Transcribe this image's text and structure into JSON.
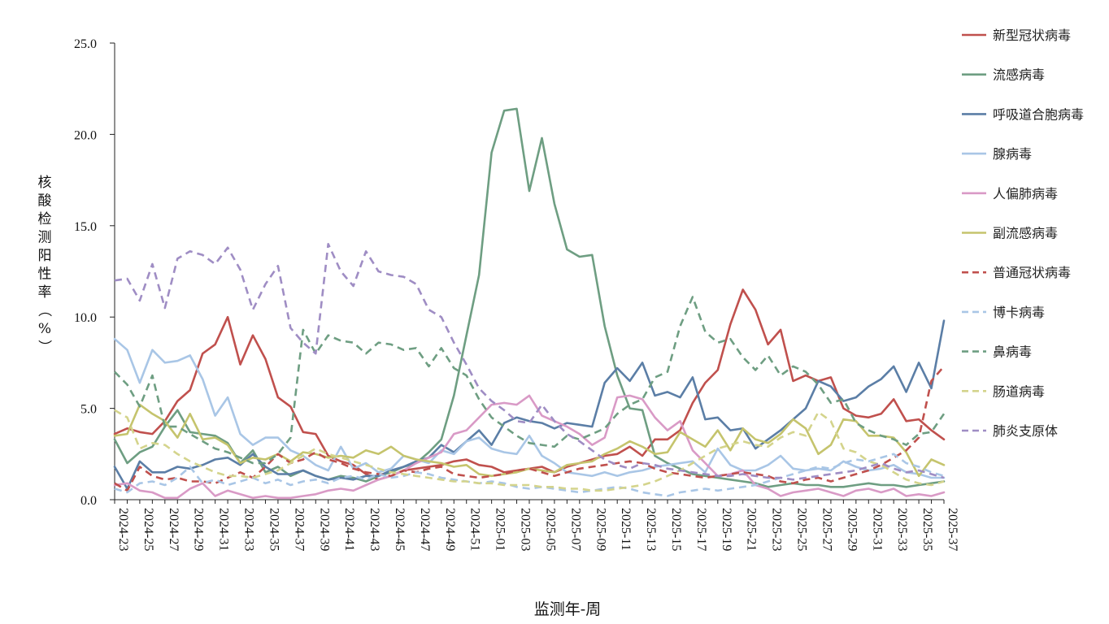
{
  "chart_data": {
    "type": "line",
    "title": "",
    "xlabel": "监测年-周",
    "ylabel": "核酸检测阳性率（%）",
    "ylim": [
      0,
      25
    ],
    "yticks": [
      "0.0",
      "5.0",
      "10.0",
      "15.0",
      "20.0",
      "25.0"
    ],
    "grid": false,
    "legend_position": "right",
    "x": [
      "2024-23",
      "2024-24",
      "2024-25",
      "2024-26",
      "2024-27",
      "2024-28",
      "2024-29",
      "2024-30",
      "2024-31",
      "2024-32",
      "2024-33",
      "2024-34",
      "2024-35",
      "2024-36",
      "2024-37",
      "2024-38",
      "2024-39",
      "2024-40",
      "2024-41",
      "2024-42",
      "2024-43",
      "2024-44",
      "2024-45",
      "2024-46",
      "2024-47",
      "2024-48",
      "2024-49",
      "2024-50",
      "2024-51",
      "2024-52",
      "2025-01",
      "2025-02",
      "2025-03",
      "2025-04",
      "2025-05",
      "2025-06",
      "2025-07",
      "2025-08",
      "2025-09",
      "2025-10",
      "2025-11",
      "2025-12",
      "2025-13",
      "2025-14",
      "2025-15",
      "2025-16",
      "2025-17",
      "2025-18",
      "2025-19",
      "2025-20",
      "2025-21",
      "2025-22",
      "2025-23",
      "2025-24",
      "2025-25",
      "2025-26",
      "2025-27",
      "2025-28",
      "2025-29",
      "2025-30",
      "2025-31",
      "2025-32",
      "2025-33",
      "2025-34",
      "2025-35",
      "2025-36",
      "2025-37"
    ],
    "x_tick_labels": [
      "2024-23",
      "2024-25",
      "2024-27",
      "2024-29",
      "2024-31",
      "2024-33",
      "2024-35",
      "2024-37",
      "2024-39",
      "2024-41",
      "2024-43",
      "2024-45",
      "2024-47",
      "2024-49",
      "2024-51",
      "2025-01",
      "2025-03",
      "2025-05",
      "2025-07",
      "2025-09",
      "2025-11",
      "2025-13",
      "2025-15",
      "2025-17",
      "2025-19",
      "2025-21",
      "2025-23",
      "2025-25",
      "2025-27",
      "2025-29",
      "2025-31",
      "2025-33",
      "2025-35",
      "2025-37"
    ],
    "series": [
      {
        "name": "新型冠状病毒",
        "color": "#c0504d",
        "dash": false,
        "values": [
          3.6,
          3.9,
          3.7,
          3.6,
          4.3,
          5.4,
          6.0,
          8.0,
          8.5,
          10.0,
          7.4,
          9.0,
          7.7,
          5.6,
          5.1,
          3.7,
          3.6,
          2.4,
          2.1,
          1.9,
          1.4,
          1.1,
          1.3,
          1.6,
          1.7,
          1.8,
          1.9,
          2.1,
          2.2,
          1.9,
          1.8,
          1.5,
          1.6,
          1.7,
          1.8,
          1.5,
          1.8,
          2.0,
          2.2,
          2.4,
          2.5,
          2.9,
          2.4,
          3.3,
          3.3,
          3.8,
          5.3,
          6.4,
          7.1,
          9.6,
          11.5,
          10.4,
          8.5,
          9.3,
          6.5,
          6.8,
          6.5,
          6.7,
          5.0,
          4.6,
          4.5,
          4.7,
          5.5,
          4.3,
          4.4,
          3.8,
          3.3
        ]
      },
      {
        "name": "流感病毒",
        "color": "#6e9e82",
        "dash": false,
        "values": [
          3.3,
          2.0,
          2.6,
          2.9,
          4.0,
          4.9,
          3.7,
          3.6,
          3.5,
          3.1,
          2.0,
          2.7,
          1.5,
          1.8,
          1.3,
          1.6,
          1.3,
          1.1,
          1.3,
          1.2,
          1.0,
          1.3,
          1.5,
          1.8,
          2.0,
          2.6,
          3.3,
          5.7,
          9.0,
          12.3,
          19.0,
          21.3,
          21.4,
          16.9,
          19.8,
          16.2,
          13.7,
          13.3,
          13.4,
          9.5,
          6.8,
          5.0,
          4.9,
          2.4,
          2.0,
          1.7,
          1.4,
          1.3,
          1.2,
          1.1,
          1.0,
          0.9,
          0.7,
          0.8,
          0.9,
          0.8,
          0.8,
          0.7,
          0.7,
          0.8,
          0.9,
          0.8,
          0.8,
          0.7,
          0.8,
          0.9,
          1.0
        ]
      },
      {
        "name": "呼吸道合胞病毒",
        "color": "#5b7ea6",
        "dash": false,
        "values": [
          1.8,
          0.6,
          2.1,
          1.5,
          1.5,
          1.8,
          1.7,
          1.9,
          2.2,
          2.3,
          1.9,
          2.5,
          1.8,
          1.4,
          1.4,
          1.6,
          1.3,
          1.1,
          1.2,
          1.1,
          1.3,
          1.3,
          1.6,
          1.8,
          2.1,
          2.3,
          3.0,
          2.6,
          3.2,
          3.8,
          3.0,
          4.2,
          4.5,
          4.3,
          4.2,
          3.9,
          4.2,
          4.1,
          4.0,
          6.4,
          7.2,
          6.5,
          7.5,
          5.7,
          5.9,
          5.6,
          6.7,
          4.4,
          4.5,
          3.8,
          3.9,
          2.8,
          3.3,
          3.8,
          4.4,
          5.0,
          6.5,
          6.2,
          5.4,
          5.6,
          6.2,
          6.6,
          7.3,
          5.9,
          7.5,
          6.1,
          9.8
        ]
      },
      {
        "name": "腺病毒",
        "color": "#a9c6e6",
        "dash": false,
        "values": [
          8.8,
          8.2,
          6.4,
          8.2,
          7.5,
          7.6,
          7.9,
          6.6,
          4.6,
          5.6,
          3.6,
          3.0,
          3.4,
          3.4,
          2.7,
          2.4,
          1.9,
          1.6,
          2.9,
          1.7,
          2.0,
          1.5,
          1.7,
          2.4,
          2.2,
          2.0,
          2.7,
          2.5,
          3.2,
          3.4,
          2.8,
          2.6,
          2.5,
          3.5,
          2.4,
          2.0,
          1.5,
          1.4,
          1.3,
          1.5,
          1.3,
          1.5,
          1.6,
          1.8,
          1.9,
          2.0,
          2.1,
          1.5,
          2.8,
          1.9,
          1.6,
          1.6,
          1.9,
          2.4,
          1.7,
          1.6,
          1.7,
          1.6,
          2.1,
          1.8,
          1.6,
          1.7,
          1.9,
          1.5,
          1.4,
          1.2,
          1.2
        ]
      },
      {
        "name": "人偏肺病毒",
        "color": "#d99ac6",
        "dash": false,
        "values": [
          0.8,
          0.9,
          0.5,
          0.4,
          0.1,
          0.1,
          0.6,
          0.9,
          0.2,
          0.5,
          0.3,
          0.1,
          0.2,
          0.1,
          0.1,
          0.2,
          0.3,
          0.5,
          0.6,
          0.5,
          0.8,
          1.1,
          1.3,
          1.6,
          2.0,
          2.3,
          2.6,
          3.6,
          3.8,
          4.5,
          5.2,
          5.3,
          5.2,
          5.7,
          4.6,
          4.3,
          4.0,
          3.6,
          3.0,
          3.4,
          5.6,
          5.7,
          5.5,
          4.5,
          3.8,
          4.3,
          2.7,
          2.0,
          1.3,
          1.4,
          1.6,
          0.8,
          0.6,
          0.2,
          0.4,
          0.5,
          0.6,
          0.4,
          0.2,
          0.5,
          0.6,
          0.4,
          0.6,
          0.2,
          0.3,
          0.2,
          0.4
        ]
      },
      {
        "name": "副流感病毒",
        "color": "#c5c46d",
        "dash": false,
        "values": [
          3.5,
          3.6,
          5.2,
          4.7,
          4.3,
          3.4,
          4.7,
          3.3,
          3.4,
          3.0,
          2.0,
          2.3,
          2.2,
          2.5,
          2.1,
          2.6,
          2.5,
          2.3,
          2.4,
          2.3,
          2.7,
          2.5,
          2.9,
          2.4,
          2.2,
          2.1,
          2.0,
          1.8,
          1.9,
          1.4,
          1.3,
          1.4,
          1.5,
          1.7,
          1.6,
          1.5,
          1.9,
          2.0,
          2.1,
          2.5,
          2.8,
          3.2,
          2.9,
          2.5,
          2.6,
          3.7,
          3.3,
          2.9,
          3.8,
          2.7,
          3.9,
          3.3,
          3.1,
          3.6,
          4.4,
          3.9,
          2.5,
          3.0,
          4.4,
          4.3,
          3.5,
          3.5,
          3.4,
          2.6,
          1.3,
          2.2,
          1.9
        ]
      },
      {
        "name": "普通冠状病毒",
        "color": "#c0504d",
        "dash": true,
        "values": [
          0.9,
          0.5,
          1.8,
          1.3,
          1.1,
          1.2,
          1.0,
          1.0,
          0.9,
          1.2,
          1.5,
          1.2,
          1.8,
          2.5,
          2.0,
          2.2,
          2.6,
          2.2,
          2.0,
          1.7,
          1.5,
          1.4,
          1.3,
          1.6,
          1.5,
          1.7,
          1.8,
          1.4,
          1.3,
          1.2,
          1.3,
          1.4,
          1.6,
          1.7,
          1.5,
          1.3,
          1.5,
          1.7,
          1.8,
          1.9,
          2.0,
          2.1,
          2.0,
          1.7,
          1.5,
          1.4,
          1.3,
          1.2,
          1.3,
          1.4,
          1.5,
          1.4,
          1.3,
          1.0,
          0.9,
          1.1,
          1.2,
          1.0,
          1.2,
          1.4,
          1.6,
          1.9,
          2.3,
          2.7,
          3.4,
          6.5,
          7.3
        ]
      },
      {
        "name": "博卡病毒",
        "color": "#a9c6e6",
        "dash": true,
        "values": [
          0.6,
          0.4,
          0.9,
          1.0,
          0.8,
          1.2,
          1.8,
          0.9,
          1.1,
          0.8,
          1.0,
          1.2,
          0.9,
          1.1,
          0.8,
          1.0,
          1.1,
          0.9,
          1.2,
          1.3,
          1.1,
          1.4,
          1.2,
          1.3,
          1.5,
          1.4,
          1.2,
          1.1,
          1.0,
          0.9,
          1.0,
          0.9,
          0.7,
          0.6,
          0.7,
          0.6,
          0.5,
          0.4,
          0.5,
          0.6,
          0.7,
          0.6,
          0.4,
          0.3,
          0.2,
          0.4,
          0.5,
          0.6,
          0.5,
          0.6,
          0.7,
          0.8,
          1.0,
          1.2,
          1.4,
          1.6,
          1.8,
          1.7,
          2.0,
          2.2,
          2.1,
          2.3,
          2.5,
          2.0,
          1.8,
          1.5,
          1.3
        ]
      },
      {
        "name": "鼻病毒",
        "color": "#6e9e82",
        "dash": true,
        "values": [
          7.0,
          6.3,
          5.1,
          6.8,
          4.0,
          4.0,
          3.6,
          3.2,
          2.8,
          2.6,
          2.3,
          2.0,
          2.0,
          2.5,
          3.4,
          9.3,
          8.0,
          9.0,
          8.7,
          8.6,
          8.0,
          8.6,
          8.5,
          8.2,
          8.3,
          7.3,
          8.3,
          7.2,
          6.8,
          5.5,
          4.5,
          4.0,
          3.5,
          3.1,
          3.0,
          2.9,
          3.5,
          3.3,
          3.6,
          3.9,
          4.7,
          5.2,
          5.5,
          6.7,
          7.0,
          9.5,
          11.1,
          9.2,
          8.6,
          8.8,
          7.8,
          7.1,
          7.9,
          6.8,
          7.3,
          7.0,
          6.3,
          5.3,
          5.5,
          4.2,
          3.8,
          3.5,
          3.3,
          3.0,
          3.6,
          3.7,
          4.7
        ]
      },
      {
        "name": "肠道病毒",
        "color": "#d4d48c",
        "dash": true,
        "values": [
          4.9,
          4.5,
          2.8,
          3.1,
          3.0,
          2.5,
          2.1,
          1.8,
          1.5,
          1.3,
          1.3,
          1.2,
          1.4,
          1.6,
          2.0,
          2.4,
          2.8,
          2.5,
          2.3,
          2.1,
          1.9,
          1.7,
          1.5,
          1.4,
          1.3,
          1.2,
          1.1,
          1.0,
          1.0,
          0.9,
          0.9,
          0.8,
          0.8,
          0.8,
          0.7,
          0.7,
          0.6,
          0.6,
          0.5,
          0.5,
          0.6,
          0.7,
          0.8,
          1.0,
          1.3,
          1.6,
          2.0,
          2.4,
          2.8,
          3.0,
          3.2,
          3.0,
          2.9,
          3.4,
          3.7,
          3.5,
          4.8,
          4.3,
          2.8,
          2.6,
          2.1,
          1.9,
          1.5,
          1.1,
          0.9,
          0.8,
          1.0
        ]
      },
      {
        "name": "肺炎支原体",
        "color": "#9f8dc4",
        "dash": true,
        "values": [
          12.0,
          12.1,
          10.9,
          12.9,
          10.5,
          13.2,
          13.6,
          13.4,
          12.9,
          13.8,
          12.6,
          10.4,
          11.8,
          12.8,
          9.4,
          8.6,
          8.0,
          14.0,
          12.5,
          11.7,
          13.6,
          12.5,
          12.3,
          12.2,
          11.8,
          10.4,
          10.0,
          8.6,
          7.4,
          6.1,
          5.4,
          4.9,
          4.3,
          4.2,
          5.2,
          4.3,
          3.6,
          3.2,
          2.7,
          2.2,
          1.9,
          1.7,
          2.0,
          1.9,
          1.7,
          1.6,
          1.5,
          1.4,
          1.3,
          1.3,
          1.4,
          1.3,
          1.2,
          1.2,
          1.1,
          1.2,
          1.3,
          1.4,
          1.5,
          1.6,
          1.8,
          2.0,
          1.7,
          1.5,
          1.6,
          1.4,
          1.2
        ]
      }
    ]
  }
}
